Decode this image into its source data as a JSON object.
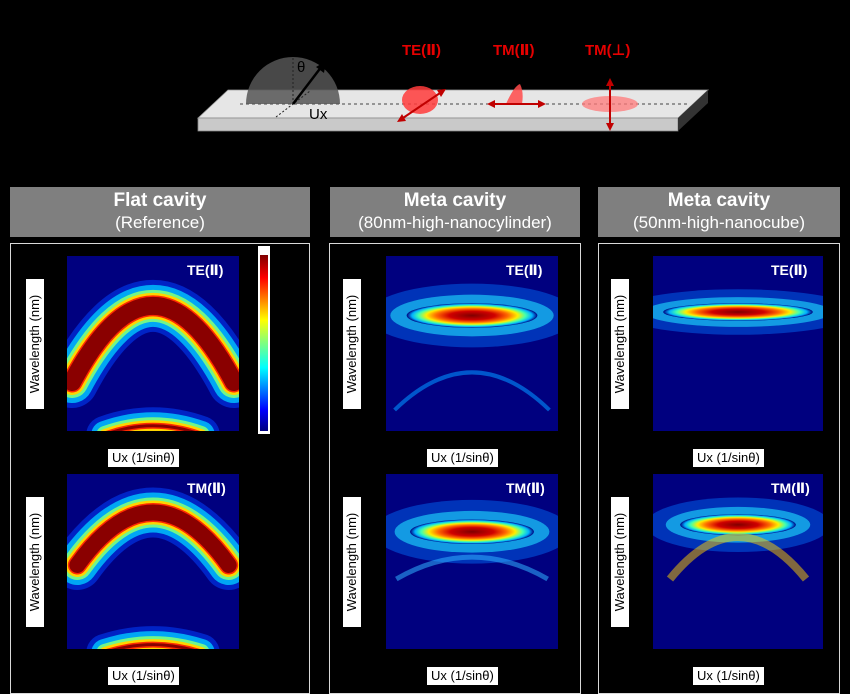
{
  "schematic": {
    "axis_label": "Ux",
    "angle_label": "θ",
    "polarizations": [
      "TE(Ⅱ)",
      "TM(Ⅱ)",
      "TM(⊥)"
    ]
  },
  "panels": [
    {
      "title": "Flat cavity",
      "subtitle": "(Reference)",
      "plots": [
        {
          "label": "TE(Ⅱ)",
          "ylabel": "Wavelength (nm)",
          "xlabel": "Ux (1/sinθ)"
        },
        {
          "label": "TM(Ⅱ)",
          "ylabel": "Wavelength (nm)",
          "xlabel": "Ux (1/sinθ)"
        }
      ]
    },
    {
      "title": "Meta cavity",
      "subtitle": "(80nm-high-nanocylinder)",
      "plots": [
        {
          "label": "TE(Ⅱ)",
          "ylabel": "Wavelength (nm)",
          "xlabel": "Ux (1/sinθ)"
        },
        {
          "label": "TM(Ⅱ)",
          "ylabel": "Wavelength (nm)",
          "xlabel": "Ux (1/sinθ)"
        }
      ]
    },
    {
      "title": "Meta cavity",
      "subtitle": "(50nm-high-nanocube)",
      "plots": [
        {
          "label": "TE(Ⅱ)",
          "ylabel": "Wavelength (nm)",
          "xlabel": "Ux (1/sinθ)"
        },
        {
          "label": "TM(Ⅱ)",
          "ylabel": "Wavelength (nm)",
          "xlabel": "Ux (1/sinθ)"
        }
      ]
    }
  ],
  "colors": {
    "background": "#000000",
    "header": "#7f7f7f",
    "plot_background": "#00007f",
    "polarization_red": "#e60000"
  },
  "colorbar_map": "jet"
}
